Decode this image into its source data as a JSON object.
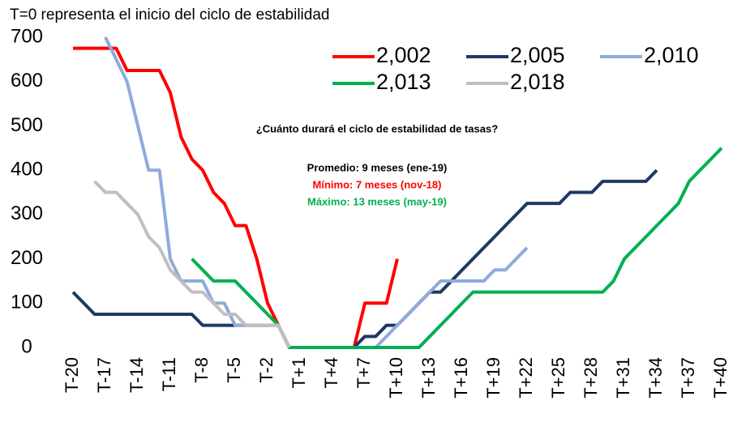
{
  "chart_data": {
    "type": "line",
    "subtitle": "T=0 representa el inicio del ciclo de estabilidad",
    "annotations": [
      {
        "text": "¿Cuánto durará el ciclo de estabilidad de tasas?",
        "color": "#000000"
      },
      {
        "text": "Promedio: 9 meses (ene-19)",
        "color": "#000000"
      },
      {
        "text": "Mínimo: 7 meses (nov-18)",
        "color": "#ff0000"
      },
      {
        "text": "Máximo: 13 meses (may-19)",
        "color": "#00b050"
      }
    ],
    "categories": [
      "T-20",
      null,
      null,
      "T-17",
      null,
      null,
      "T-14",
      null,
      null,
      "T-11",
      null,
      null,
      "T-8",
      null,
      null,
      "T-5",
      null,
      null,
      "T-2",
      null,
      null,
      "T+1",
      null,
      null,
      "T+4",
      null,
      null,
      "T+7",
      null,
      null,
      "T+10",
      null,
      null,
      "T+13",
      null,
      null,
      "T+16",
      null,
      null,
      "T+19",
      null,
      null,
      "T+22",
      null,
      null,
      "T+25",
      null,
      null,
      "T+28",
      null,
      null,
      "T+31",
      null,
      null,
      "T+34",
      null,
      null,
      "T+37",
      null,
      null,
      "T+40"
    ],
    "series": [
      {
        "name": "2,002",
        "color": "#ff0000",
        "values": [
          675,
          675,
          675,
          675,
          675,
          625,
          625,
          625,
          625,
          575,
          475,
          425,
          400,
          350,
          325,
          275,
          275,
          200,
          100,
          50,
          0,
          0,
          0,
          0,
          0,
          0,
          0,
          100,
          100,
          100,
          200,
          null,
          null,
          null,
          null,
          null,
          null,
          null,
          null,
          null,
          null,
          null,
          null,
          null,
          null,
          null,
          null,
          null,
          null,
          null,
          null,
          null,
          null,
          null,
          null,
          null,
          null,
          null,
          null,
          null,
          null
        ]
      },
      {
        "name": "2,005",
        "color": "#1f3864",
        "values": [
          125,
          100,
          75,
          75,
          75,
          75,
          75,
          75,
          75,
          75,
          75,
          75,
          50,
          50,
          50,
          50,
          50,
          50,
          50,
          50,
          0,
          0,
          0,
          0,
          0,
          0,
          0,
          25,
          25,
          50,
          50,
          75,
          100,
          125,
          125,
          150,
          175,
          200,
          225,
          250,
          275,
          300,
          325,
          325,
          325,
          325,
          350,
          350,
          350,
          375,
          375,
          375,
          375,
          375,
          400,
          null,
          null,
          null,
          null,
          null,
          null
        ]
      },
      {
        "name": "2,010",
        "color": "#8faadc",
        "values": [
          null,
          null,
          null,
          700,
          650,
          600,
          500,
          400,
          400,
          200,
          150,
          150,
          150,
          100,
          100,
          50,
          50,
          50,
          50,
          50,
          0,
          0,
          0,
          0,
          0,
          0,
          0,
          0,
          0,
          25,
          50,
          75,
          100,
          125,
          150,
          150,
          150,
          150,
          150,
          175,
          175,
          200,
          225,
          null,
          null,
          null,
          null,
          null,
          null,
          null,
          null,
          null,
          null,
          null,
          null,
          null,
          null,
          null,
          null,
          null,
          null
        ]
      },
      {
        "name": "2,013",
        "color": "#00b050",
        "values": [
          null,
          null,
          null,
          null,
          null,
          null,
          null,
          null,
          null,
          null,
          null,
          200,
          175,
          150,
          150,
          150,
          125,
          100,
          75,
          50,
          0,
          0,
          0,
          0,
          0,
          0,
          0,
          0,
          0,
          0,
          0,
          0,
          0,
          25,
          50,
          75,
          100,
          125,
          125,
          125,
          125,
          125,
          125,
          125,
          125,
          125,
          125,
          125,
          125,
          125,
          150,
          200,
          225,
          250,
          275,
          300,
          325,
          375,
          400,
          425,
          450
        ]
      },
      {
        "name": "2,018",
        "color": "#bfbfbf",
        "values": [
          null,
          null,
          375,
          350,
          350,
          325,
          300,
          250,
          225,
          175,
          150,
          125,
          125,
          100,
          75,
          75,
          50,
          50,
          50,
          50,
          0,
          null,
          null,
          null,
          null,
          null,
          null,
          null,
          null,
          null,
          null,
          null,
          null,
          null,
          null,
          null,
          null,
          null,
          null,
          null,
          null,
          null,
          null,
          null,
          null,
          null,
          null,
          null,
          null,
          null,
          null,
          null,
          null,
          null,
          null,
          null,
          null,
          null,
          null,
          null,
          null
        ]
      }
    ],
    "ylim": [
      0,
      700
    ],
    "yticks": [
      0,
      100,
      200,
      300,
      400,
      500,
      600,
      700
    ],
    "grid": false
  }
}
